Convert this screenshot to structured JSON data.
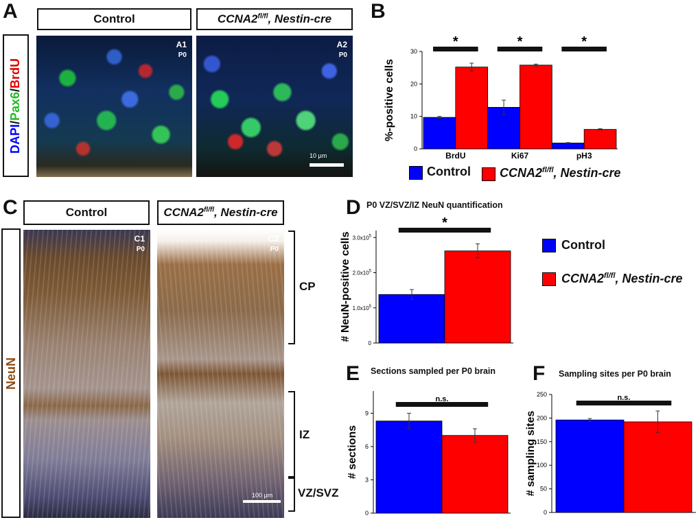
{
  "panel_letters": {
    "a": "A",
    "b": "B",
    "c": "C",
    "d": "D",
    "e": "E",
    "f": "F"
  },
  "headers": {
    "control": "Control",
    "mutant": "CCNA2",
    "mutant_sup": "fl/fl",
    "mutant_suffix": ", Nestin-cre"
  },
  "panelA": {
    "stain_dapi": "DAPI",
    "slash1": "/",
    "stain_pax6": "Pax6",
    "slash2": "/",
    "stain_brdu": "BrdU",
    "a1": "A1",
    "a2": "A2",
    "age": "P0",
    "scale": "10 μm"
  },
  "panelC": {
    "stain": "NeuN",
    "c1": "C1",
    "c2": "C2",
    "age": "P0",
    "scale": "100 μm",
    "layers": {
      "cp": "CP",
      "iz": "IZ",
      "vz": "VZ/SVZ"
    }
  },
  "legend": {
    "control": "Control",
    "mutant": "CCNA2",
    "mutant_sup": "fl/fl",
    "mutant_suffix": ", Nestin-cre"
  },
  "colors": {
    "control": "#0000ff",
    "mutant": "#ff0000"
  },
  "chart_data": [
    {
      "id": "B",
      "type": "bar",
      "categories": [
        "BrdU",
        "Ki67",
        "pH3"
      ],
      "ylabel": "%-positive cells",
      "ylim": [
        0,
        30
      ],
      "yticks": [
        "0",
        "10",
        "20",
        "30"
      ],
      "ytick_values": [
        0,
        10,
        20,
        30
      ],
      "series": [
        {
          "name": "Control",
          "values": [
            9.7,
            12.8,
            1.8
          ],
          "errors": [
            0.3,
            2.2,
            0.15
          ]
        },
        {
          "name": "CCNA2fl/fl, Nestin-cre",
          "values": [
            25.2,
            25.8,
            6.0
          ],
          "errors": [
            1.2,
            0.3,
            0.2
          ]
        }
      ],
      "significance": [
        "*",
        "*",
        "*"
      ]
    },
    {
      "id": "D",
      "type": "bar",
      "title": "P0 VZ/SVZ/IZ NeuN quantification",
      "ylabel": "# NeuN-positive cells",
      "ylim": [
        0,
        320000
      ],
      "yticks": [
        "0",
        "1.0x10",
        "2.0x10",
        "3.0x10"
      ],
      "ytick_values": [
        0,
        100000,
        200000,
        300000
      ],
      "ytick_exp": "5",
      "series": [
        {
          "name": "Control",
          "values": [
            138000
          ],
          "errors": [
            14000
          ]
        },
        {
          "name": "CCNA2fl/fl, Nestin-cre",
          "values": [
            262000
          ],
          "errors": [
            20000
          ]
        }
      ],
      "significance": "*"
    },
    {
      "id": "E",
      "type": "bar",
      "title": "Sections sampled per P0 brain",
      "ylabel": "# sections",
      "ylim": [
        0,
        11
      ],
      "yticks": [
        "0",
        "3",
        "6",
        "9"
      ],
      "ytick_values": [
        0,
        3,
        6,
        9
      ],
      "series": [
        {
          "name": "Control",
          "values": [
            8.3
          ],
          "errors": [
            0.7
          ]
        },
        {
          "name": "CCNA2fl/fl, Nestin-cre",
          "values": [
            7.0
          ],
          "errors": [
            0.6
          ]
        }
      ],
      "significance": "n.s."
    },
    {
      "id": "F",
      "type": "bar",
      "title": "Sampling sites per P0 brain",
      "ylabel": "# sampling sites",
      "ylim": [
        0,
        250
      ],
      "yticks": [
        "0",
        "50",
        "100",
        "150",
        "200",
        "250"
      ],
      "ytick_values": [
        0,
        50,
        100,
        150,
        200,
        250
      ],
      "series": [
        {
          "name": "Control",
          "values": [
            196
          ],
          "errors": [
            3
          ]
        },
        {
          "name": "CCNA2fl/fl, Nestin-cre",
          "values": [
            192
          ],
          "errors": [
            23
          ]
        }
      ],
      "significance": "n.s."
    }
  ]
}
